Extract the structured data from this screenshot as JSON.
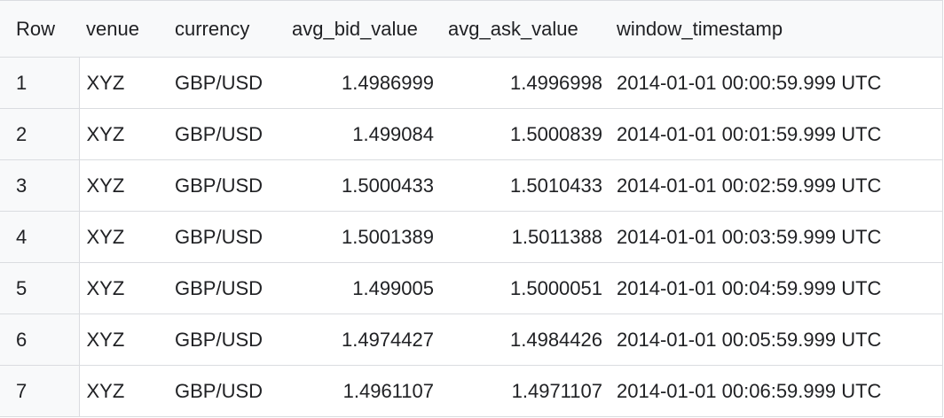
{
  "table": {
    "columns": [
      "Row",
      "venue",
      "currency",
      "avg_bid_value",
      "avg_ask_value",
      "window_timestamp"
    ],
    "rows": [
      {
        "row": "1",
        "venue": "XYZ",
        "currency": "GBP/USD",
        "avg_bid_value": "1.4986999",
        "avg_ask_value": "1.4996998",
        "window_timestamp": "2014-01-01 00:00:59.999 UTC"
      },
      {
        "row": "2",
        "venue": "XYZ",
        "currency": "GBP/USD",
        "avg_bid_value": "1.499084",
        "avg_ask_value": "1.5000839",
        "window_timestamp": "2014-01-01 00:01:59.999 UTC"
      },
      {
        "row": "3",
        "venue": "XYZ",
        "currency": "GBP/USD",
        "avg_bid_value": "1.5000433",
        "avg_ask_value": "1.5010433",
        "window_timestamp": "2014-01-01 00:02:59.999 UTC"
      },
      {
        "row": "4",
        "venue": "XYZ",
        "currency": "GBP/USD",
        "avg_bid_value": "1.5001389",
        "avg_ask_value": "1.5011388",
        "window_timestamp": "2014-01-01 00:03:59.999 UTC"
      },
      {
        "row": "5",
        "venue": "XYZ",
        "currency": "GBP/USD",
        "avg_bid_value": "1.499005",
        "avg_ask_value": "1.5000051",
        "window_timestamp": "2014-01-01 00:04:59.999 UTC"
      },
      {
        "row": "6",
        "venue": "XYZ",
        "currency": "GBP/USD",
        "avg_bid_value": "1.4974427",
        "avg_ask_value": "1.4984426",
        "window_timestamp": "2014-01-01 00:05:59.999 UTC"
      },
      {
        "row": "7",
        "venue": "XYZ",
        "currency": "GBP/USD",
        "avg_bid_value": "1.4961107",
        "avg_ask_value": "1.4971107",
        "window_timestamp": "2014-01-01 00:06:59.999 UTC"
      }
    ]
  },
  "colors": {
    "header_background": "#f8f9fa",
    "row_number_background": "#f8f9fa",
    "border": "#dadce0",
    "text": "#202124"
  }
}
